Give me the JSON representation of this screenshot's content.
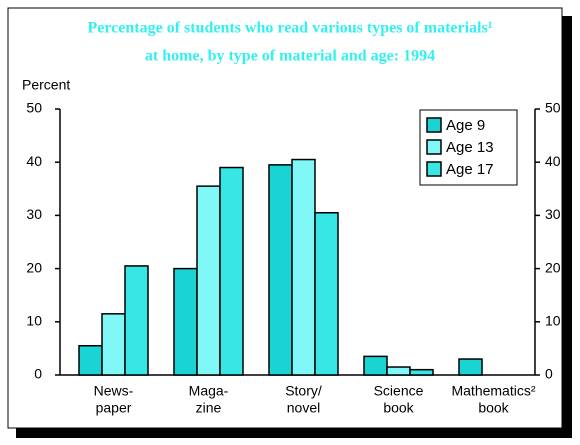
{
  "chart_data": {
    "type": "bar",
    "title": [
      "Percentage of students who read various types of materials¹",
      "at home, by type of material and age:  1994"
    ],
    "y_label": "Percent",
    "categories": [
      [
        "News-",
        "paper"
      ],
      [
        "Maga-",
        "zine"
      ],
      [
        "Story/",
        "novel"
      ],
      [
        "Science",
        "book"
      ],
      [
        "Mathematics²",
        "book"
      ]
    ],
    "series": [
      {
        "name": "Age 9",
        "color": "#1ad4d4",
        "values": [
          5.5,
          20,
          39.5,
          3.5,
          3
        ]
      },
      {
        "name": "Age 13",
        "color": "#80f8f8",
        "values": [
          11.5,
          35.5,
          40.5,
          1.5,
          0
        ]
      },
      {
        "name": "Age 17",
        "color": "#38e6e6",
        "values": [
          20.5,
          39,
          30.5,
          1,
          0
        ]
      }
    ],
    "ylim": [
      0,
      50
    ],
    "yticks": [
      0,
      10,
      20,
      30,
      40,
      50
    ],
    "legend": "upper right"
  }
}
